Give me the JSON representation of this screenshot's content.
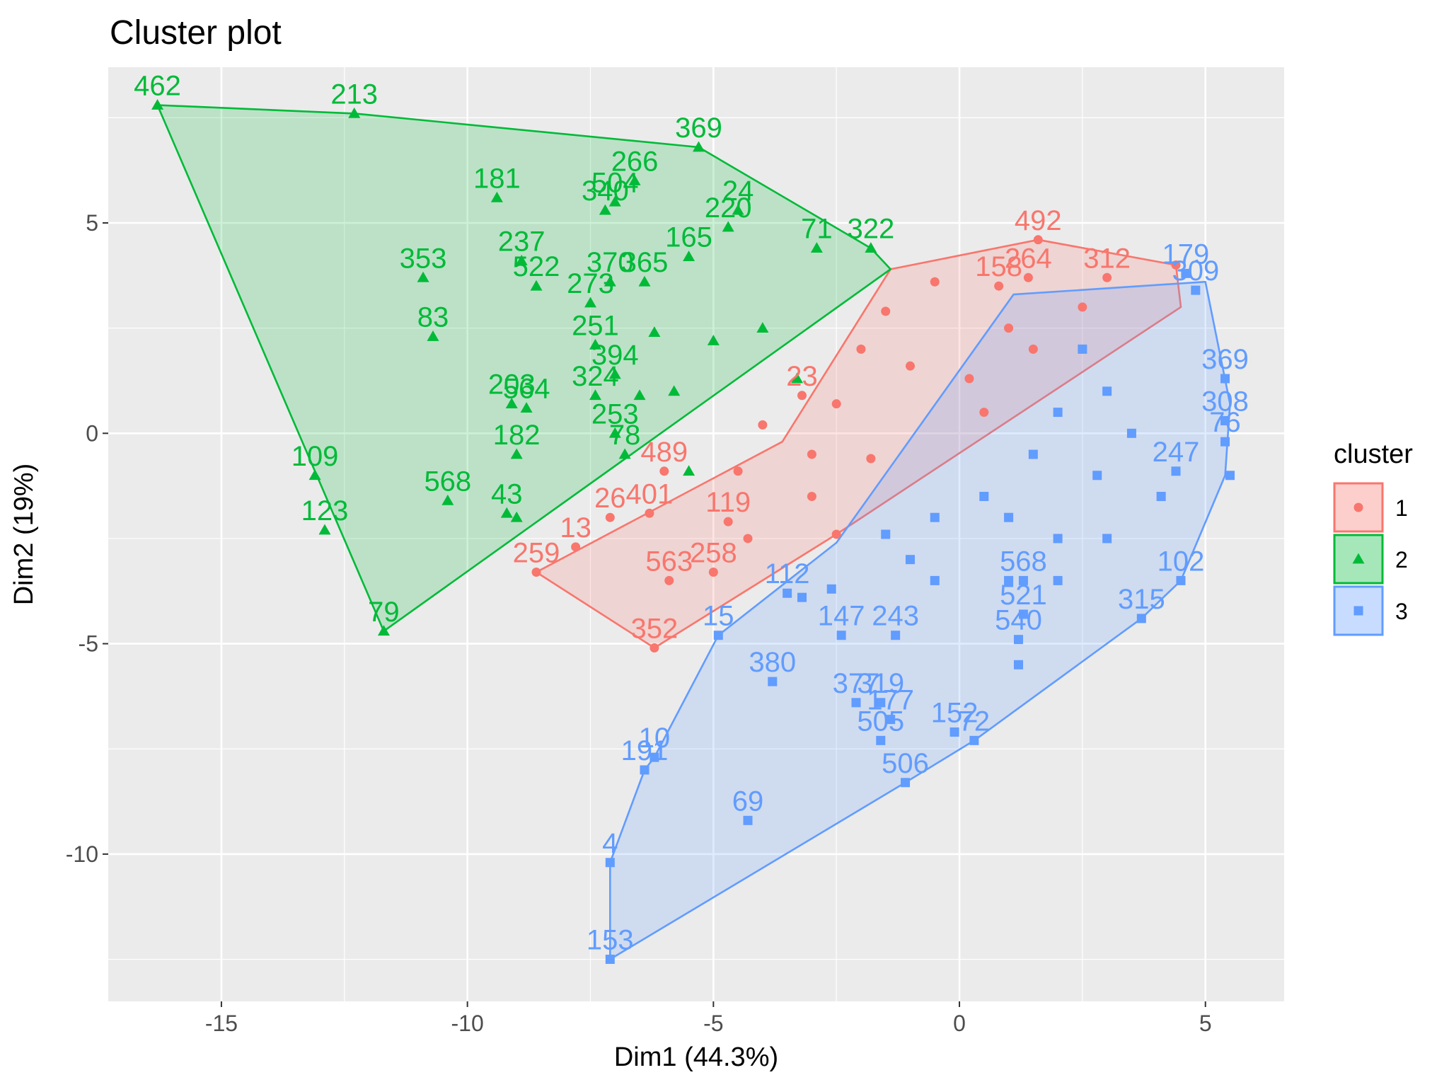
{
  "chart_data": {
    "type": "scatter",
    "title": "Cluster plot",
    "xlabel": "Dim1 (44.3%)",
    "ylabel": "Dim2 (19%)",
    "xlim": [
      -17.3,
      6.6
    ],
    "ylim": [
      -13.5,
      8.7
    ],
    "xticks": [
      -15,
      -10,
      -5,
      0,
      5
    ],
    "yticks": [
      -10,
      -5,
      0,
      5
    ],
    "grid": true,
    "legend": {
      "title": "cluster",
      "position": "right",
      "entries": [
        "1",
        "2",
        "3"
      ]
    },
    "colors": {
      "1": "#F8766D",
      "2": "#00BA38",
      "3": "#619CFF"
    },
    "markers": {
      "1": "circle",
      "2": "triangle",
      "3": "square"
    },
    "series": [
      {
        "name": "1",
        "hull": [
          [
            1.6,
            4.6
          ],
          [
            4.4,
            4.0
          ],
          [
            4.5,
            3.0
          ],
          [
            -2.5,
            -2.4
          ],
          [
            -6.2,
            -5.1
          ],
          [
            -8.6,
            -3.3
          ],
          [
            -3.6,
            -0.2
          ],
          [
            -1.4,
            3.9
          ],
          [
            1.6,
            4.6
          ]
        ],
        "points": [
          {
            "label": "492",
            "x": 1.6,
            "y": 4.6
          },
          {
            "label": "264",
            "x": 1.4,
            "y": 3.7
          },
          {
            "label": "312",
            "x": 3.0,
            "y": 3.7
          },
          {
            "label": "",
            "x": -0.5,
            "y": 3.6
          },
          {
            "label": "158",
            "x": 0.8,
            "y": 3.5
          },
          {
            "label": "",
            "x": -1.5,
            "y": 2.9
          },
          {
            "label": "",
            "x": -2.0,
            "y": 2.0
          },
          {
            "label": "",
            "x": -1.0,
            "y": 1.6
          },
          {
            "label": "",
            "x": 0.2,
            "y": 1.3
          },
          {
            "label": "23",
            "x": -3.2,
            "y": 0.9
          },
          {
            "label": "",
            "x": -2.5,
            "y": 0.7
          },
          {
            "label": "",
            "x": -4.0,
            "y": 0.2
          },
          {
            "label": "",
            "x": -3.0,
            "y": -0.5
          },
          {
            "label": "",
            "x": -1.8,
            "y": -0.6
          },
          {
            "label": "",
            "x": -4.5,
            "y": -0.9
          },
          {
            "label": "489",
            "x": -6.0,
            "y": -0.9
          },
          {
            "label": "401",
            "x": -6.3,
            "y": -1.9
          },
          {
            "label": "26",
            "x": -7.1,
            "y": -2.0
          },
          {
            "label": "13",
            "x": -7.8,
            "y": -2.7
          },
          {
            "label": "259",
            "x": -8.6,
            "y": -3.3
          },
          {
            "label": "119",
            "x": -4.7,
            "y": -2.1
          },
          {
            "label": "",
            "x": -3.0,
            "y": -1.5
          },
          {
            "label": "563",
            "x": -5.9,
            "y": -3.5
          },
          {
            "label": "258",
            "x": -5.0,
            "y": -3.3
          },
          {
            "label": "",
            "x": -4.3,
            "y": -2.5
          },
          {
            "label": "352",
            "x": -6.2,
            "y": -5.1
          },
          {
            "label": "",
            "x": -2.5,
            "y": -2.4
          },
          {
            "label": "",
            "x": 1.0,
            "y": 2.5
          },
          {
            "label": "",
            "x": 2.5,
            "y": 3.0
          },
          {
            "label": "",
            "x": 4.4,
            "y": 4.0
          },
          {
            "label": "",
            "x": 0.5,
            "y": 0.5
          },
          {
            "label": "",
            "x": 1.5,
            "y": 2.0
          }
        ]
      },
      {
        "name": "2",
        "hull": [
          [
            -16.3,
            7.8
          ],
          [
            -12.3,
            7.6
          ],
          [
            -5.3,
            6.8
          ],
          [
            -1.8,
            4.4
          ],
          [
            -1.4,
            3.9
          ],
          [
            -11.7,
            -4.7
          ],
          [
            -16.3,
            7.8
          ]
        ],
        "points": [
          {
            "label": "462",
            "x": -16.3,
            "y": 7.8
          },
          {
            "label": "213",
            "x": -12.3,
            "y": 7.6
          },
          {
            "label": "369",
            "x": -5.3,
            "y": 6.8
          },
          {
            "label": "266",
            "x": -6.6,
            "y": 6.0
          },
          {
            "label": "181",
            "x": -9.4,
            "y": 5.6
          },
          {
            "label": "504",
            "x": -7.0,
            "y": 5.5
          },
          {
            "label": "340",
            "x": -7.2,
            "y": 5.3
          },
          {
            "label": "24",
            "x": -4.5,
            "y": 5.3
          },
          {
            "label": "220",
            "x": -4.7,
            "y": 4.9
          },
          {
            "label": "71",
            "x": -2.9,
            "y": 4.4
          },
          {
            "label": "322",
            "x": -1.8,
            "y": 4.4
          },
          {
            "label": "353",
            "x": -10.9,
            "y": 3.7
          },
          {
            "label": "237",
            "x": -8.9,
            "y": 4.1
          },
          {
            "label": "522",
            "x": -8.6,
            "y": 3.5
          },
          {
            "label": "370",
            "x": -7.1,
            "y": 3.6
          },
          {
            "label": "365",
            "x": -6.4,
            "y": 3.6
          },
          {
            "label": "165",
            "x": -5.5,
            "y": 4.2
          },
          {
            "label": "273",
            "x": -7.5,
            "y": 3.1
          },
          {
            "label": "83",
            "x": -10.7,
            "y": 2.3
          },
          {
            "label": "251",
            "x": -7.4,
            "y": 2.1
          },
          {
            "label": "",
            "x": -6.2,
            "y": 2.4
          },
          {
            "label": "",
            "x": -5.0,
            "y": 2.2
          },
          {
            "label": "",
            "x": -4.0,
            "y": 2.5
          },
          {
            "label": "394",
            "x": -7.0,
            "y": 1.4
          },
          {
            "label": "203",
            "x": -9.1,
            "y": 0.7
          },
          {
            "label": "564",
            "x": -8.8,
            "y": 0.6
          },
          {
            "label": "324",
            "x": -7.4,
            "y": 0.9
          },
          {
            "label": "",
            "x": -6.5,
            "y": 0.9
          },
          {
            "label": "",
            "x": -5.8,
            "y": 1.0
          },
          {
            "label": "",
            "x": -3.3,
            "y": 1.3
          },
          {
            "label": "182",
            "x": -9.0,
            "y": -0.5
          },
          {
            "label": "253",
            "x": -7.0,
            "y": 0.0
          },
          {
            "label": "78",
            "x": -6.8,
            "y": -0.5
          },
          {
            "label": "109",
            "x": -13.1,
            "y": -1.0
          },
          {
            "label": "568",
            "x": -10.4,
            "y": -1.6
          },
          {
            "label": "43",
            "x": -9.2,
            "y": -1.9
          },
          {
            "label": "",
            "x": -9.0,
            "y": -2.0
          },
          {
            "label": "123",
            "x": -12.9,
            "y": -2.3
          },
          {
            "label": "79",
            "x": -11.7,
            "y": -4.7
          },
          {
            "label": "",
            "x": -5.5,
            "y": -0.9
          }
        ]
      },
      {
        "name": "3",
        "hull": [
          [
            5.0,
            3.6
          ],
          [
            5.5,
            0.7
          ],
          [
            5.4,
            -1.0
          ],
          [
            4.5,
            -3.5
          ],
          [
            3.7,
            -4.4
          ],
          [
            0.3,
            -7.3
          ],
          [
            -1.1,
            -8.3
          ],
          [
            -7.1,
            -12.5
          ],
          [
            -7.1,
            -10.2
          ],
          [
            -6.4,
            -8.0
          ],
          [
            -6.2,
            -7.7
          ],
          [
            -4.9,
            -4.8
          ],
          [
            -2.5,
            -2.6
          ],
          [
            1.1,
            3.3
          ],
          [
            5.0,
            3.6
          ]
        ],
        "points": [
          {
            "label": "179",
            "x": 4.6,
            "y": 3.8
          },
          {
            "label": "309",
            "x": 4.8,
            "y": 3.4
          },
          {
            "label": "369",
            "x": 5.4,
            "y": 1.3
          },
          {
            "label": "308",
            "x": 5.4,
            "y": 0.3
          },
          {
            "label": "76",
            "x": 5.4,
            "y": -0.2
          },
          {
            "label": "",
            "x": 5.5,
            "y": -1.0
          },
          {
            "label": "247",
            "x": 4.4,
            "y": -0.9
          },
          {
            "label": "",
            "x": 4.1,
            "y": -1.5
          },
          {
            "label": "102",
            "x": 4.5,
            "y": -3.5
          },
          {
            "label": "315",
            "x": 3.7,
            "y": -4.4
          },
          {
            "label": "",
            "x": 2.5,
            "y": 2.0
          },
          {
            "label": "",
            "x": 3.0,
            "y": 1.0
          },
          {
            "label": "",
            "x": 2.0,
            "y": 0.5
          },
          {
            "label": "",
            "x": 3.5,
            "y": 0.0
          },
          {
            "label": "",
            "x": 1.5,
            "y": -0.5
          },
          {
            "label": "",
            "x": 2.8,
            "y": -1.0
          },
          {
            "label": "",
            "x": 0.5,
            "y": -1.5
          },
          {
            "label": "",
            "x": 1.0,
            "y": -2.0
          },
          {
            "label": "",
            "x": -0.5,
            "y": -2.0
          },
          {
            "label": "",
            "x": -1.5,
            "y": -2.4
          },
          {
            "label": "",
            "x": 2.0,
            "y": -2.5
          },
          {
            "label": "",
            "x": 3.0,
            "y": -2.5
          },
          {
            "label": "568",
            "x": 1.3,
            "y": -3.5
          },
          {
            "label": "",
            "x": 1.0,
            "y": -3.5
          },
          {
            "label": "",
            "x": 2.0,
            "y": -3.5
          },
          {
            "label": "",
            "x": -0.5,
            "y": -3.5
          },
          {
            "label": "",
            "x": -1.0,
            "y": -3.0
          },
          {
            "label": "112",
            "x": -3.5,
            "y": -3.8
          },
          {
            "label": "",
            "x": -3.2,
            "y": -3.9
          },
          {
            "label": "",
            "x": -2.6,
            "y": -3.7
          },
          {
            "label": "243",
            "x": -1.3,
            "y": -4.8
          },
          {
            "label": "147",
            "x": -2.4,
            "y": -4.8
          },
          {
            "label": "15",
            "x": -4.9,
            "y": -4.8
          },
          {
            "label": "521",
            "x": 1.3,
            "y": -4.3
          },
          {
            "label": "540",
            "x": 1.2,
            "y": -4.9
          },
          {
            "label": "",
            "x": 1.2,
            "y": -5.5
          },
          {
            "label": "380",
            "x": -3.8,
            "y": -5.9
          },
          {
            "label": "377",
            "x": -2.1,
            "y": -6.4
          },
          {
            "label": "319",
            "x": -1.6,
            "y": -6.4
          },
          {
            "label": "177",
            "x": -1.4,
            "y": -6.8
          },
          {
            "label": "152",
            "x": -0.1,
            "y": -7.1
          },
          {
            "label": "72",
            "x": 0.3,
            "y": -7.3
          },
          {
            "label": "505",
            "x": -1.6,
            "y": -7.3
          },
          {
            "label": "506",
            "x": -1.1,
            "y": -8.3
          },
          {
            "label": "10",
            "x": -6.2,
            "y": -7.7
          },
          {
            "label": "191",
            "x": -6.4,
            "y": -8.0
          },
          {
            "label": "69",
            "x": -4.3,
            "y": -9.2
          },
          {
            "label": "4",
            "x": -7.1,
            "y": -10.2
          },
          {
            "label": "153",
            "x": -7.1,
            "y": -12.5
          }
        ]
      }
    ]
  }
}
